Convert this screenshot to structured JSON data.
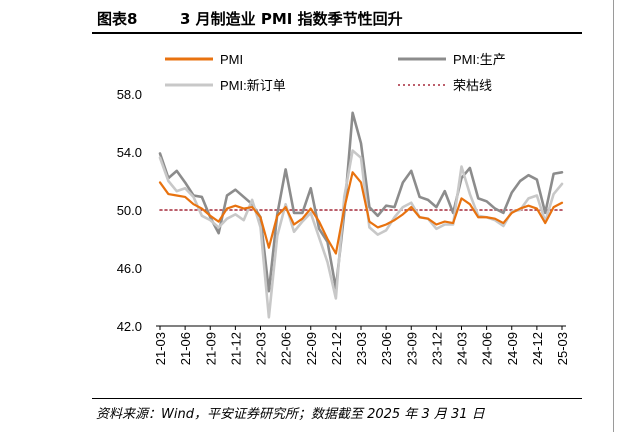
{
  "header": {
    "figure_number": "图表8",
    "title": "3 月制造业 PMI 指数季节性回升"
  },
  "source": "资料来源：Wind，平安证券研究所；数据截至 2025 年 3 月 31 日",
  "chart_data": {
    "type": "line",
    "ylim": [
      42.0,
      58.0
    ],
    "yticks": [
      "58.0",
      "54.0",
      "50.0",
      "46.0",
      "42.0"
    ],
    "categories": [
      "21-03",
      "21-04",
      "21-05",
      "21-06",
      "21-07",
      "21-08",
      "21-09",
      "21-10",
      "21-11",
      "21-12",
      "22-01",
      "22-02",
      "22-03",
      "22-04",
      "22-05",
      "22-06",
      "22-07",
      "22-08",
      "22-09",
      "22-10",
      "22-11",
      "22-12",
      "23-01",
      "23-02",
      "23-03",
      "23-04",
      "23-05",
      "23-06",
      "23-07",
      "23-08",
      "23-09",
      "23-10",
      "23-11",
      "23-12",
      "24-01",
      "24-02",
      "24-03",
      "24-04",
      "24-05",
      "24-06",
      "24-07",
      "24-08",
      "24-09",
      "24-10",
      "24-11",
      "24-12",
      "25-01",
      "25-02",
      "25-03"
    ],
    "tick_labels": [
      "21-03",
      "21-06",
      "21-09",
      "21-12",
      "22-03",
      "22-06",
      "22-09",
      "22-12",
      "23-03",
      "23-06",
      "23-09",
      "23-12",
      "24-03",
      "24-06",
      "24-09",
      "24-12",
      "25-03"
    ],
    "reference_value": 50.0,
    "series": [
      {
        "name": "PMI",
        "color": "#e8720f",
        "style": "solid",
        "values": [
          51.9,
          51.1,
          51.0,
          50.9,
          50.4,
          50.1,
          49.6,
          49.2,
          50.1,
          50.3,
          50.1,
          50.2,
          49.5,
          47.4,
          49.6,
          50.2,
          49.0,
          49.4,
          50.1,
          49.2,
          48.0,
          47.0,
          50.1,
          52.6,
          51.9,
          49.2,
          48.8,
          49.0,
          49.3,
          49.7,
          50.2,
          49.5,
          49.4,
          49.0,
          49.2,
          49.1,
          50.8,
          50.4,
          49.5,
          49.5,
          49.4,
          49.1,
          49.8,
          50.1,
          50.3,
          50.1,
          49.1,
          50.2,
          50.5
        ]
      },
      {
        "name": "PMI:生产",
        "color": "#8c8c8c",
        "style": "solid",
        "values": [
          53.9,
          52.2,
          52.7,
          51.9,
          51.0,
          50.9,
          49.5,
          48.4,
          51.0,
          51.4,
          50.9,
          50.4,
          49.5,
          44.4,
          49.7,
          52.8,
          49.8,
          49.8,
          51.5,
          48.7,
          47.8,
          44.6,
          49.8,
          56.7,
          54.6,
          50.2,
          49.6,
          50.3,
          50.2,
          51.9,
          52.7,
          50.9,
          50.7,
          50.2,
          51.3,
          49.8,
          52.2,
          52.9,
          50.8,
          50.6,
          50.1,
          49.8,
          51.2,
          52.0,
          52.4,
          52.1,
          49.8,
          52.5,
          52.6
        ]
      },
      {
        "name": "PMI:新订单",
        "color": "#c8c8c8",
        "style": "solid",
        "values": [
          53.6,
          52.0,
          51.3,
          51.5,
          50.9,
          49.6,
          49.3,
          48.8,
          49.4,
          49.7,
          49.3,
          50.7,
          48.8,
          42.6,
          48.2,
          50.4,
          48.5,
          49.2,
          49.8,
          48.1,
          46.4,
          43.9,
          50.9,
          54.1,
          53.6,
          48.8,
          48.3,
          48.6,
          49.5,
          50.2,
          50.5,
          49.5,
          49.4,
          48.7,
          49.0,
          49.0,
          53.0,
          51.1,
          49.6,
          49.5,
          49.3,
          48.9,
          49.9,
          50.0,
          50.8,
          51.0,
          49.2,
          51.1,
          51.8
        ]
      },
      {
        "name": "荣枯线",
        "color": "#a52a3a",
        "style": "dotted",
        "values": [
          50,
          50,
          50,
          50,
          50,
          50,
          50,
          50,
          50,
          50,
          50,
          50,
          50,
          50,
          50,
          50,
          50,
          50,
          50,
          50,
          50,
          50,
          50,
          50,
          50,
          50,
          50,
          50,
          50,
          50,
          50,
          50,
          50,
          50,
          50,
          50,
          50,
          50,
          50,
          50,
          50,
          50,
          50,
          50,
          50,
          50,
          50,
          50,
          50
        ]
      }
    ]
  }
}
